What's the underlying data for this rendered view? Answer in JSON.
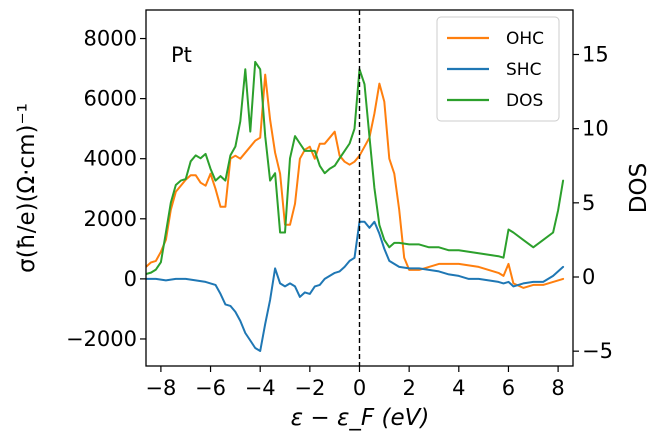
{
  "chart_data": {
    "type": "line",
    "panel_label": "Pt",
    "xlabel": "ε − ε_F (eV)",
    "ylabel_left": "σ(ħ/e)(Ω·cm)⁻¹",
    "ylabel_right": "DOS",
    "xlim": [
      -8.6,
      8.6
    ],
    "ylim_left": [
      -2900,
      8950
    ],
    "ylim_right": [
      -6.0,
      18.0
    ],
    "xticks": [
      -8,
      -6,
      -4,
      -2,
      0,
      2,
      4,
      6,
      8
    ],
    "yticks_left": [
      -2000,
      0,
      2000,
      4000,
      6000,
      8000
    ],
    "yticks_right": [
      -5,
      0,
      5,
      10,
      15
    ],
    "fermi_line_x": 0,
    "legend": {
      "position": "top-right",
      "entries": [
        {
          "label": "OHC",
          "color": "#ff7f0e"
        },
        {
          "label": "SHC",
          "color": "#1f77b4"
        },
        {
          "label": "DOS",
          "color": "#2ca02c"
        }
      ]
    },
    "series": [
      {
        "name": "OHC",
        "axis": "left",
        "color": "#ff7f0e",
        "x": [
          -8.6,
          -8.4,
          -8.2,
          -8.0,
          -7.8,
          -7.6,
          -7.4,
          -7.2,
          -7.0,
          -6.8,
          -6.6,
          -6.4,
          -6.2,
          -6.0,
          -5.8,
          -5.6,
          -5.4,
          -5.2,
          -5.0,
          -4.8,
          -4.6,
          -4.4,
          -4.2,
          -4.0,
          -3.8,
          -3.6,
          -3.4,
          -3.2,
          -3.0,
          -2.8,
          -2.6,
          -2.4,
          -2.2,
          -2.0,
          -1.8,
          -1.6,
          -1.4,
          -1.2,
          -1.0,
          -0.8,
          -0.6,
          -0.4,
          -0.2,
          0.0,
          0.2,
          0.4,
          0.6,
          0.8,
          1.0,
          1.2,
          1.4,
          1.6,
          1.8,
          2.0,
          2.4,
          2.8,
          3.2,
          3.6,
          4.0,
          4.4,
          4.8,
          5.2,
          5.6,
          5.8,
          6.0,
          6.2,
          6.6,
          7.0,
          7.4,
          7.8,
          8.0,
          8.2
        ],
        "y": [
          400,
          550,
          600,
          900,
          1300,
          2300,
          2900,
          3100,
          3300,
          3450,
          3450,
          3200,
          3100,
          3500,
          3000,
          2400,
          2400,
          4000,
          4100,
          4000,
          4200,
          4400,
          4600,
          4700,
          6800,
          5300,
          4200,
          3500,
          1800,
          1800,
          2500,
          4000,
          4300,
          4400,
          4000,
          4500,
          4500,
          4700,
          4900,
          4100,
          3900,
          3800,
          3900,
          4100,
          4400,
          4700,
          5500,
          6500,
          5900,
          4000,
          3500,
          2300,
          700,
          300,
          300,
          400,
          500,
          500,
          500,
          450,
          400,
          300,
          200,
          100,
          500,
          -150,
          -300,
          -200,
          -200,
          -100,
          -50,
          0
        ]
      },
      {
        "name": "SHC",
        "axis": "left",
        "color": "#1f77b4",
        "x": [
          -8.6,
          -8.2,
          -7.8,
          -7.4,
          -7.0,
          -6.6,
          -6.2,
          -5.8,
          -5.6,
          -5.4,
          -5.2,
          -5.0,
          -4.8,
          -4.6,
          -4.4,
          -4.2,
          -4.0,
          -3.8,
          -3.6,
          -3.4,
          -3.2,
          -3.0,
          -2.8,
          -2.6,
          -2.4,
          -2.2,
          -2.0,
          -1.8,
          -1.6,
          -1.4,
          -1.2,
          -1.0,
          -0.8,
          -0.6,
          -0.4,
          -0.2,
          0.0,
          0.2,
          0.4,
          0.6,
          0.8,
          1.0,
          1.2,
          1.6,
          2.0,
          2.4,
          2.8,
          3.2,
          3.6,
          4.0,
          4.4,
          4.8,
          5.2,
          5.6,
          5.8,
          6.0,
          6.2,
          6.6,
          7.0,
          7.4,
          7.8,
          8.0,
          8.2
        ],
        "y": [
          0,
          0,
          -50,
          0,
          0,
          -50,
          -100,
          -200,
          -500,
          -850,
          -900,
          -1100,
          -1400,
          -1800,
          -2050,
          -2300,
          -2400,
          -1500,
          -700,
          350,
          -150,
          -250,
          -150,
          -250,
          -600,
          -450,
          -500,
          -250,
          -200,
          0,
          100,
          200,
          250,
          400,
          600,
          700,
          1900,
          1900,
          1700,
          1900,
          1500,
          1000,
          600,
          400,
          350,
          350,
          300,
          250,
          150,
          100,
          0,
          0,
          -50,
          -100,
          -150,
          -100,
          -250,
          -150,
          -100,
          -100,
          100,
          250,
          400
        ]
      },
      {
        "name": "DOS",
        "axis": "right",
        "color": "#2ca02c",
        "x": [
          -8.6,
          -8.4,
          -8.2,
          -8.0,
          -7.8,
          -7.6,
          -7.4,
          -7.2,
          -7.0,
          -6.8,
          -6.6,
          -6.4,
          -6.2,
          -6.0,
          -5.8,
          -5.6,
          -5.4,
          -5.2,
          -5.0,
          -4.8,
          -4.6,
          -4.4,
          -4.2,
          -4.0,
          -3.8,
          -3.6,
          -3.4,
          -3.2,
          -3.0,
          -2.8,
          -2.6,
          -2.4,
          -2.2,
          -2.0,
          -1.8,
          -1.6,
          -1.4,
          -1.2,
          -1.0,
          -0.8,
          -0.6,
          -0.4,
          -0.2,
          0.0,
          0.2,
          0.4,
          0.6,
          0.8,
          1.0,
          1.2,
          1.4,
          1.6,
          2.0,
          2.4,
          2.8,
          3.2,
          3.6,
          4.0,
          4.4,
          4.8,
          5.2,
          5.6,
          5.8,
          6.0,
          6.2,
          6.6,
          7.0,
          7.4,
          7.8,
          8.0,
          8.2
        ],
        "y": [
          0.2,
          0.3,
          0.5,
          1.0,
          3.0,
          5.0,
          6.2,
          6.5,
          6.6,
          7.8,
          8.2,
          8.0,
          8.3,
          7.3,
          6.5,
          6.8,
          6.5,
          8.2,
          8.8,
          10.5,
          14.0,
          9.8,
          14.5,
          14.0,
          9.5,
          6.5,
          7.0,
          3.0,
          3.0,
          8.0,
          9.5,
          9.0,
          8.5,
          8.5,
          8.5,
          7.5,
          7.0,
          7.3,
          7.5,
          8.0,
          8.5,
          9.0,
          10.0,
          14.0,
          13.0,
          9.5,
          6.0,
          3.5,
          2.5,
          2.0,
          2.3,
          2.3,
          2.2,
          2.2,
          2.0,
          2.0,
          1.8,
          1.8,
          1.7,
          1.6,
          1.5,
          1.4,
          1.3,
          3.2,
          3.0,
          2.5,
          2.0,
          2.5,
          3.0,
          4.5,
          6.5
        ]
      }
    ]
  }
}
